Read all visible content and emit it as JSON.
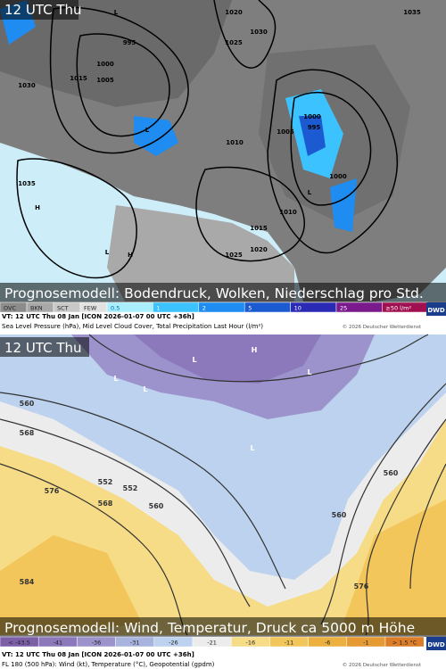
{
  "top_panel": {
    "time_label": "12 UTC Thu",
    "caption": "Prognosemodell: Bodendruck, Wolken, Niederschlag pro Std.",
    "legend": [
      {
        "label": "OVC",
        "color": "#8c8c8c"
      },
      {
        "label": "BKN",
        "color": "#a8a8a8"
      },
      {
        "label": "SCT",
        "color": "#c8c8c8"
      },
      {
        "label": "FEW",
        "color": "#e2e2e2"
      },
      {
        "label": "0.5",
        "color": "#a8eefc"
      },
      {
        "label": "1",
        "color": "#3cc2ff"
      },
      {
        "label": "2",
        "color": "#1e8cf0"
      },
      {
        "label": "5",
        "color": "#1c5ad2"
      },
      {
        "label": "10",
        "color": "#2a2ab4"
      },
      {
        "label": "25",
        "color": "#7a1a8c"
      },
      {
        "label": "≥50 l/m²",
        "color": "#a01050"
      }
    ],
    "logo": "DWD",
    "valid_time": "VT: 12 UTC Thu  08 Jan [ICON 2026-01-07 00 UTC +36h]",
    "description": "Sea Level Pressure (hPa), Mid Level Cloud Cover, Total Precipitation Last Hour (l/m²)",
    "copyright": "© 2026 Deutscher Wetterdienst",
    "map_labels": [
      "1020",
      "1025",
      "1030",
      "1035",
      "995",
      "1000",
      "1005",
      "1015",
      "1010",
      "1000",
      "995",
      "1005",
      "1000",
      "1010",
      "1015",
      "1035",
      "1025",
      "1020",
      "1030",
      "L",
      "L",
      "L",
      "H",
      "H",
      "L"
    ]
  },
  "bottom_panel": {
    "time_label": "12 UTC Thu",
    "caption": "Prognosemodell: Wind, Temperatur, Druck ca 5000 m Höhe",
    "legend": [
      {
        "label": "< -43.5",
        "color": "#7d5fa8"
      },
      {
        "label": "-41",
        "color": "#8c79bc"
      },
      {
        "label": "-36",
        "color": "#9c93cc"
      },
      {
        "label": "-31",
        "color": "#a9b4de"
      },
      {
        "label": "-26",
        "color": "#bcd2ee"
      },
      {
        "label": "-21",
        "color": "#ececec"
      },
      {
        "label": "-16",
        "color": "#f6dc86"
      },
      {
        "label": "-11",
        "color": "#f2c65a"
      },
      {
        "label": "-6",
        "color": "#ecb040"
      },
      {
        "label": "-1",
        "color": "#e69a34"
      },
      {
        "label": "> 1.5 °C",
        "color": "#dc7e28"
      }
    ],
    "logo": "DWD",
    "valid_time": "VT: 12 UTC Thu  08 Jan [ICON 2026-01-07 00 UTC +36h]",
    "description": "FL 180 (500 hPa): Wind (kt), Temperature (°C), Geopotential (gpdm)",
    "copyright": "© 2026 Deutscher Wetterdienst",
    "map_labels": [
      "560",
      "568",
      "552",
      "552",
      "576",
      "560",
      "568",
      "584",
      "560",
      "576",
      "560",
      "L",
      "L",
      "L",
      "L",
      "L",
      "H"
    ]
  }
}
